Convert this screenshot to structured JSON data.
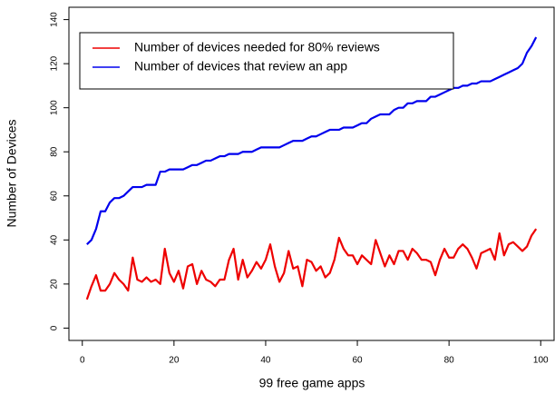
{
  "chart_data": {
    "type": "line",
    "x_label": "99 free game apps",
    "y_label": "Number of Devices",
    "x": [
      1,
      2,
      3,
      4,
      5,
      6,
      7,
      8,
      9,
      10,
      11,
      12,
      13,
      14,
      15,
      16,
      17,
      18,
      19,
      20,
      21,
      22,
      23,
      24,
      25,
      26,
      27,
      28,
      29,
      30,
      31,
      32,
      33,
      34,
      35,
      36,
      37,
      38,
      39,
      40,
      41,
      42,
      43,
      44,
      45,
      46,
      47,
      48,
      49,
      50,
      51,
      52,
      53,
      54,
      55,
      56,
      57,
      58,
      59,
      60,
      61,
      62,
      63,
      64,
      65,
      66,
      67,
      68,
      69,
      70,
      71,
      72,
      73,
      74,
      75,
      76,
      77,
      78,
      79,
      80,
      81,
      82,
      83,
      84,
      85,
      86,
      87,
      88,
      89,
      90,
      91,
      92,
      93,
      94,
      95,
      96,
      97,
      98,
      99
    ],
    "series": [
      {
        "name": "Number of devices needed for 80% reviews",
        "color": "#ee0000",
        "values": [
          13,
          19,
          24,
          17,
          17,
          20,
          25,
          22,
          20,
          17,
          32,
          22,
          21,
          23,
          21,
          22,
          20,
          36,
          25,
          21,
          26,
          18,
          28,
          29,
          20,
          26,
          22,
          21,
          19,
          22,
          22,
          31,
          36,
          22,
          31,
          23,
          26,
          30,
          27,
          31,
          38,
          28,
          21,
          25,
          35,
          27,
          28,
          19,
          31,
          30,
          26,
          28,
          23,
          25,
          31,
          41,
          36,
          33,
          33,
          29,
          33,
          31,
          29,
          40,
          34,
          28,
          33,
          29,
          35,
          35,
          31,
          36,
          34,
          31,
          31,
          30,
          24,
          31,
          36,
          32,
          32,
          36,
          38,
          36,
          32,
          27,
          34,
          35,
          36,
          31,
          43,
          33,
          38,
          39,
          37,
          35,
          37,
          42,
          45
        ]
      },
      {
        "name": "Number of devices that review an app",
        "color": "#0000ee",
        "values": [
          38,
          40,
          45,
          53,
          53,
          57,
          59,
          59,
          60,
          62,
          64,
          64,
          64,
          65,
          65,
          65,
          71,
          71,
          72,
          72,
          72,
          72,
          73,
          74,
          74,
          75,
          76,
          76,
          77,
          78,
          78,
          79,
          79,
          79,
          80,
          80,
          80,
          81,
          82,
          82,
          82,
          82,
          82,
          83,
          84,
          85,
          85,
          85,
          86,
          87,
          87,
          88,
          89,
          90,
          90,
          90,
          91,
          91,
          91,
          92,
          93,
          93,
          95,
          96,
          97,
          97,
          97,
          99,
          100,
          100,
          102,
          102,
          103,
          103,
          103,
          105,
          105,
          106,
          107,
          108,
          109,
          109,
          110,
          110,
          111,
          111,
          112,
          112,
          112,
          113,
          114,
          115,
          116,
          117,
          118,
          120,
          125,
          128,
          132
        ]
      }
    ],
    "xlim": [
      -2.92,
      102.92
    ],
    "ylim": [
      -5.6,
      145.6
    ],
    "xticks": [
      0,
      20,
      40,
      60,
      80,
      100
    ],
    "yticks": [
      0,
      20,
      40,
      60,
      80,
      100,
      120,
      140
    ],
    "legend": "top-left"
  }
}
